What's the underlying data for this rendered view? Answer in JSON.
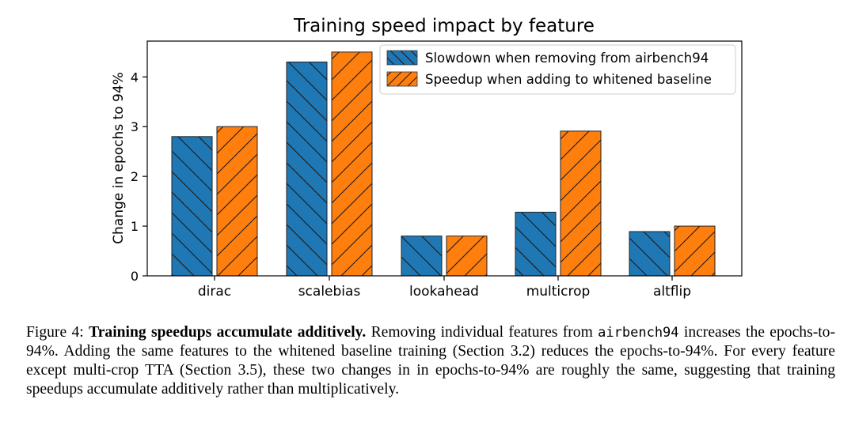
{
  "chart_data": {
    "type": "bar",
    "title": "Training speed impact by feature",
    "xlabel": "",
    "ylabel": "Change in epochs to 94%",
    "categories": [
      "dirac",
      "scalebias",
      "lookahead",
      "multicrop",
      "altflip"
    ],
    "series": [
      {
        "name": "Slowdown when removing from airbench94",
        "color": "#1f77b4",
        "hatch": "backslash",
        "values": [
          2.8,
          4.3,
          0.8,
          1.28,
          0.89
        ]
      },
      {
        "name": "Speedup when adding to whitened baseline",
        "color": "#ff7f0e",
        "hatch": "slash",
        "values": [
          3.0,
          4.5,
          0.8,
          2.91,
          1.0
        ]
      }
    ],
    "ylim": [
      0,
      4.72
    ],
    "yticks": [
      0,
      1,
      2,
      3,
      4
    ],
    "grid": false,
    "legend_position": "top-right"
  },
  "caption": {
    "label": "Figure 4:",
    "bold_title": "Training speedups accumulate additively.",
    "text_1": "Removing individual features from",
    "code": "airbench94",
    "text_2": "increases the epochs-to-94%. Adding the same features to the whitened baseline training (Section 3.2) reduces the epochs-to-94%. For every feature except multi-crop TTA (Section 3.5), these two changes in in epochs-to-94% are roughly the same, suggesting that training speedups accumulate additively rather than multiplicatively."
  }
}
